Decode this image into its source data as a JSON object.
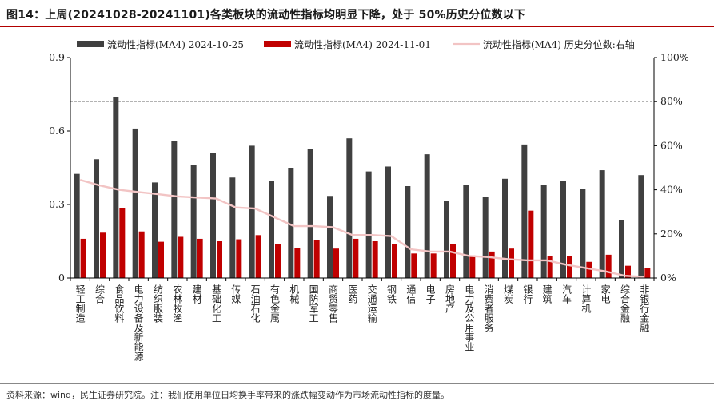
{
  "title": "图14：上周(20241028-20241101)各类板块的流动性指标均明显下降，处于 50%历史分位数以下",
  "footnote": "资料来源：wind，民生证券研究院。注：我们使用单位日均换手率带来的涨跌幅变动作为市场流动性指标的度量。",
  "chart_data": {
    "type": "bar",
    "categories": [
      "轻工制造",
      "综合",
      "食品饮料",
      "电力设备及新能源",
      "纺织服装",
      "农林牧渔",
      "建材",
      "基础化工",
      "传媒",
      "石油石化",
      "有色金属",
      "机械",
      "国防军工",
      "商贸零售",
      "医药",
      "交通运输",
      "钢铁",
      "通信",
      "电子",
      "房地产",
      "电力及公用事业",
      "消费者服务",
      "煤炭",
      "银行",
      "建筑",
      "汽车",
      "计算机",
      "家电",
      "综合金融",
      "非银行金融"
    ],
    "series": [
      {
        "name": "流动性指标(MA4) 2024-10-25",
        "type": "bar",
        "axis": "left",
        "color": "#404040",
        "values": [
          0.425,
          0.485,
          0.74,
          0.61,
          0.39,
          0.56,
          0.46,
          0.51,
          0.41,
          0.54,
          0.395,
          0.45,
          0.525,
          0.335,
          0.57,
          0.435,
          0.455,
          0.375,
          0.505,
          0.315,
          0.38,
          0.33,
          0.405,
          0.545,
          0.38,
          0.395,
          0.365,
          0.44,
          0.235,
          0.42
        ]
      },
      {
        "name": "流动性指标(MA4) 2024-11-01",
        "type": "bar",
        "axis": "left",
        "color": "#c00000",
        "values": [
          0.16,
          0.185,
          0.285,
          0.19,
          0.148,
          0.168,
          0.16,
          0.15,
          0.158,
          0.175,
          0.14,
          0.122,
          0.155,
          0.12,
          0.16,
          0.15,
          0.138,
          0.1,
          0.1,
          0.14,
          0.092,
          0.108,
          0.12,
          0.275,
          0.088,
          0.09,
          0.066,
          0.095,
          0.05,
          0.04
        ]
      },
      {
        "name": "流动性指标(MA4) 历史分位数:右轴",
        "type": "line",
        "axis": "right",
        "color": "#f2c4c4",
        "values": [
          0.445,
          0.42,
          0.4,
          0.39,
          0.38,
          0.37,
          0.365,
          0.36,
          0.32,
          0.315,
          0.275,
          0.235,
          0.235,
          0.23,
          0.195,
          0.195,
          0.19,
          0.13,
          0.12,
          0.12,
          0.1,
          0.095,
          0.085,
          0.08,
          0.08,
          0.06,
          0.045,
          0.03,
          0.01,
          0.005
        ]
      }
    ],
    "left_axis": {
      "ylim": [
        0,
        0.9
      ],
      "ticks": [
        "0",
        "0.3",
        "0.6",
        "0.9"
      ]
    },
    "right_axis": {
      "ylim": [
        0,
        1.0
      ],
      "ticks": [
        "0%",
        "20%",
        "40%",
        "60%",
        "80%",
        "100%"
      ]
    },
    "reference_line": {
      "axis": "right",
      "value": 0.8,
      "style": "dashed",
      "color": "#9a9a9a"
    },
    "legend_position": "top",
    "grid": false
  }
}
